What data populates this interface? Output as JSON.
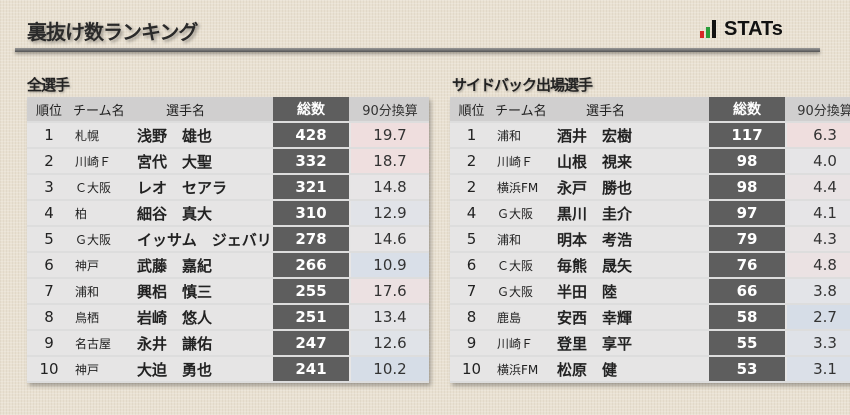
{
  "title": "裏抜け数ランキング",
  "logo": {
    "text": "STATs",
    "bar_colors": [
      "#d62828",
      "#2a9d3a",
      "#111111"
    ]
  },
  "headers": {
    "rank": "順位",
    "team": "チーム名",
    "name": "選手名",
    "total": "総数",
    "per90": "90分換算"
  },
  "tables": [
    {
      "title": "全選手",
      "rows": [
        {
          "rank": "1",
          "team": "札幌",
          "name": "浅野　雄也",
          "total": "428",
          "per90": "19.7",
          "tint": "#efdede"
        },
        {
          "rank": "2",
          "team": "川崎Ｆ",
          "name": "宮代　大聖",
          "total": "332",
          "per90": "18.7",
          "tint": "#efdfdf"
        },
        {
          "rank": "3",
          "team": "Ｃ大阪",
          "name": "レオ　セアラ",
          "total": "321",
          "per90": "14.8",
          "tint": "#e7e5e6"
        },
        {
          "rank": "4",
          "team": "柏",
          "name": "細谷　真大",
          "total": "310",
          "per90": "12.9",
          "tint": "#e1e3e8"
        },
        {
          "rank": "5",
          "team": "Ｇ大阪",
          "name": "イッサム　ジェバリ",
          "total": "278",
          "per90": "14.6",
          "tint": "#e7e5e6"
        },
        {
          "rank": "6",
          "team": "神戸",
          "name": "武藤　嘉紀",
          "total": "266",
          "per90": "10.9",
          "tint": "#d9dfe8"
        },
        {
          "rank": "7",
          "team": "浦和",
          "name": "興梠　慎三",
          "total": "255",
          "per90": "17.6",
          "tint": "#ece1e2"
        },
        {
          "rank": "8",
          "team": "鳥栖",
          "name": "岩崎　悠人",
          "total": "251",
          "per90": "13.4",
          "tint": "#e4e4e7"
        },
        {
          "rank": "9",
          "team": "名古屋",
          "name": "永井　謙佑",
          "total": "247",
          "per90": "12.6",
          "tint": "#e0e3e8"
        },
        {
          "rank": "10",
          "team": "神戸",
          "name": "大迫　勇也",
          "total": "241",
          "per90": "10.2",
          "tint": "#d6dde7"
        }
      ]
    },
    {
      "title": "サイドバック出場選手",
      "rows": [
        {
          "rank": "1",
          "team": "浦和",
          "name": "酒井　宏樹",
          "total": "117",
          "per90": "6.3",
          "tint": "#efdede"
        },
        {
          "rank": "2",
          "team": "川崎Ｆ",
          "name": "山根　視来",
          "total": "98",
          "per90": "4.0",
          "tint": "#e6e5e7"
        },
        {
          "rank": "2",
          "team": "横浜FM",
          "name": "永戸　勝也",
          "total": "98",
          "per90": "4.4",
          "tint": "#e9e3e4"
        },
        {
          "rank": "4",
          "team": "Ｇ大阪",
          "name": "黒川　圭介",
          "total": "97",
          "per90": "4.1",
          "tint": "#e6e5e7"
        },
        {
          "rank": "5",
          "team": "浦和",
          "name": "明本　考浩",
          "total": "79",
          "per90": "4.3",
          "tint": "#e8e4e5"
        },
        {
          "rank": "6",
          "team": "Ｃ大阪",
          "name": "毎熊　晟矢",
          "total": "76",
          "per90": "4.8",
          "tint": "#ebe2e3"
        },
        {
          "rank": "7",
          "team": "Ｇ大阪",
          "name": "半田　陸",
          "total": "66",
          "per90": "3.8",
          "tint": "#e3e4e8"
        },
        {
          "rank": "8",
          "team": "鹿島",
          "name": "安西　幸輝",
          "total": "58",
          "per90": "2.7",
          "tint": "#d6dde7"
        },
        {
          "rank": "9",
          "team": "川崎Ｆ",
          "name": "登里　享平",
          "total": "55",
          "per90": "3.3",
          "tint": "#dfe2e8"
        },
        {
          "rank": "10",
          "team": "横浜FM",
          "name": "松原　健",
          "total": "53",
          "per90": "3.1",
          "tint": "#dbe0e8"
        }
      ]
    }
  ]
}
